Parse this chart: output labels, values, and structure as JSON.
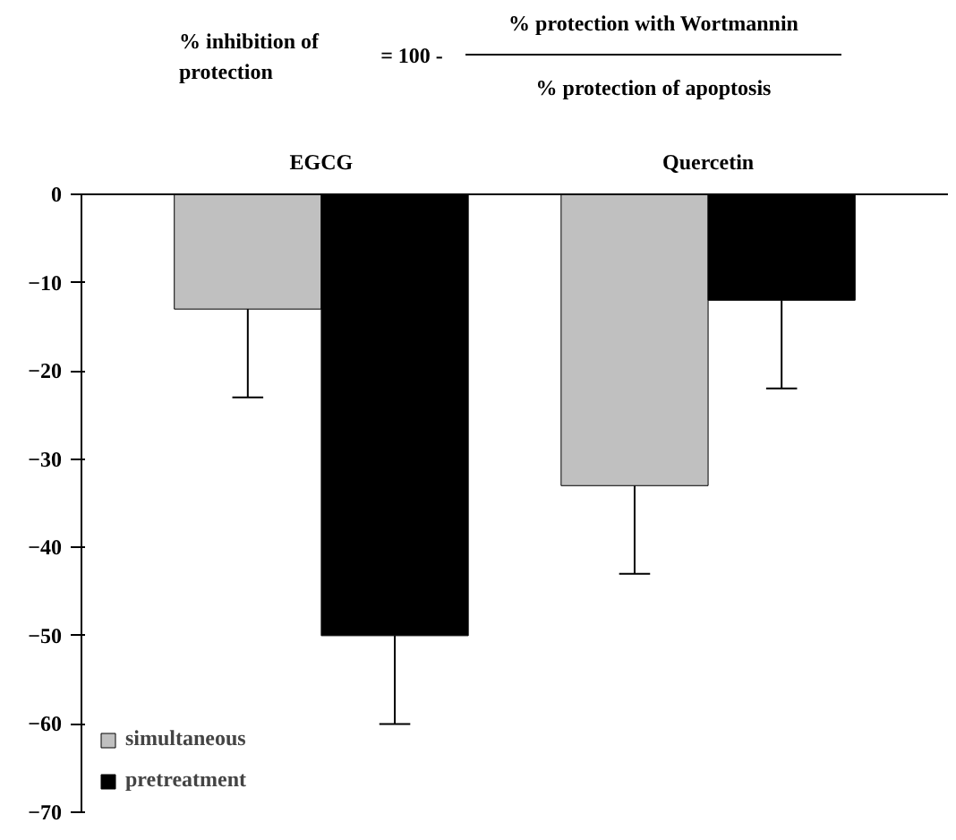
{
  "chart_data": {
    "type": "bar",
    "annotations": [
      "% inhibition of protection",
      "= 100 -",
      "% protection with Wortmannin",
      "% protection of apoptosis"
    ],
    "categories": [
      "EGCG",
      "Quercetin"
    ],
    "series": [
      {
        "name": "simultaneous",
        "color": "#c0c0c0",
        "values": [
          -13,
          -33
        ],
        "errors": [
          [
            -23,
            -13
          ],
          [
            -43,
            -33
          ]
        ]
      },
      {
        "name": "pretreatment",
        "color": "#000000",
        "values": [
          -50,
          -12
        ],
        "errors": [
          [
            -60,
            -50
          ],
          [
            -22,
            -12
          ]
        ]
      }
    ],
    "ylim": [
      -70,
      0
    ],
    "yticks": [
      0,
      -10,
      -20,
      -30,
      -40,
      -50,
      -60,
      -70
    ],
    "grid": false,
    "legend": "bottom left"
  }
}
